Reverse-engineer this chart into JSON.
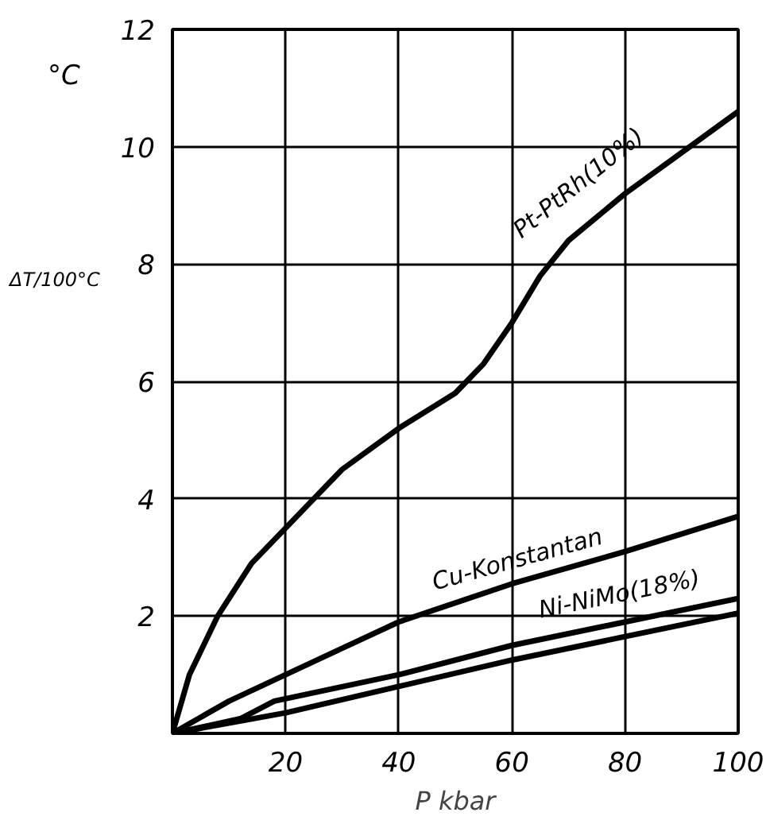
{
  "chart_data": {
    "type": "line",
    "xlabel": "P kbar",
    "ylabel": "ΔT/100°C",
    "annotations": [
      "°C"
    ],
    "xlim": [
      0,
      100
    ],
    "ylim": [
      0,
      12
    ],
    "xticks": [
      {
        "value": 0,
        "label": null
      },
      20,
      40,
      60,
      80,
      100
    ],
    "yticks": [
      {
        "value": 0,
        "label": null
      },
      2,
      4,
      6,
      8,
      10,
      12
    ],
    "grid": true,
    "marker": "none",
    "line_style": "solid",
    "series": [
      {
        "name": "Pt-PtRh(10%)",
        "color": "#000000",
        "x": [
          0,
          3,
          8,
          14,
          20,
          25,
          30,
          40,
          50,
          55,
          60,
          65,
          70,
          80,
          90,
          100
        ],
        "values": [
          0,
          1.0,
          2.0,
          2.9,
          3.5,
          4.0,
          4.5,
          5.2,
          5.8,
          6.3,
          7.0,
          7.8,
          8.4,
          9.2,
          9.9,
          10.6
        ]
      },
      {
        "name": "Cu-Konstantan",
        "color": "#000000",
        "x": [
          0,
          10,
          20,
          30,
          40,
          60,
          80,
          100
        ],
        "values": [
          0,
          0.55,
          1.0,
          1.45,
          1.9,
          2.55,
          3.1,
          3.7
        ]
      },
      {
        "name": "Ni-NiMo(18%)",
        "color": "#000000",
        "x": [
          0,
          12,
          18,
          40,
          60,
          80,
          100
        ],
        "values": [
          0,
          0.25,
          0.55,
          1.0,
          1.5,
          1.9,
          2.3
        ]
      },
      {
        "color": "#000000",
        "x": [
          0,
          20,
          40,
          60,
          80,
          100
        ],
        "values": [
          0,
          0.35,
          0.8,
          1.25,
          1.65,
          2.05
        ]
      }
    ]
  }
}
